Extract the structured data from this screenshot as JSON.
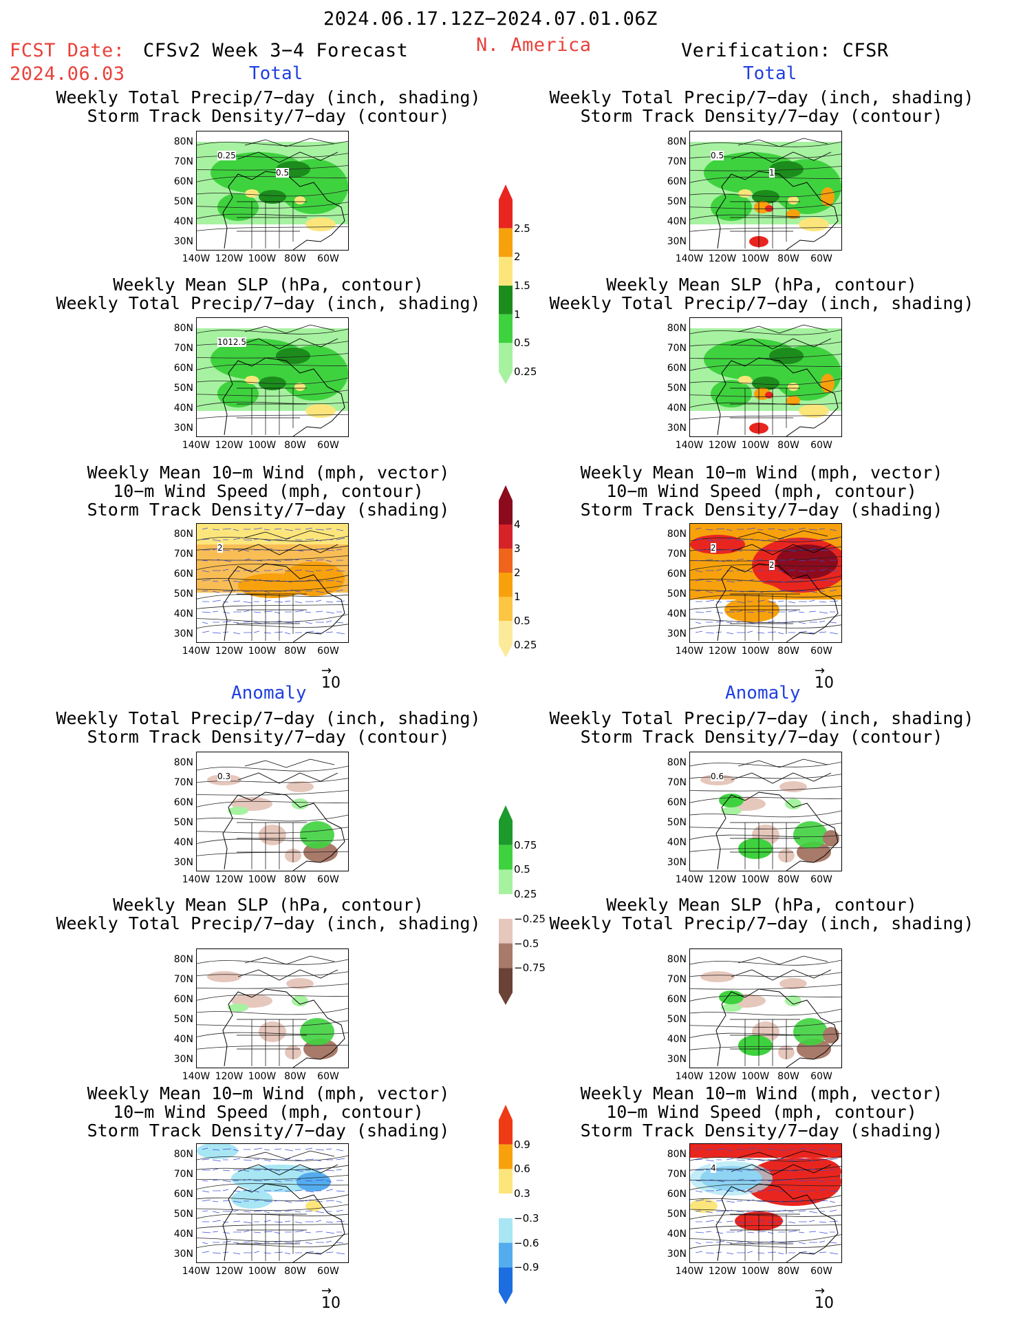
{
  "header": {
    "period": "2024.06.17.12Z−2024.07.01.06Z",
    "region": "N. America",
    "fcst_label": "FCST Date:",
    "fcst_date": "2024.06.03",
    "model": "CFSv2 Week 3−4 Forecast",
    "verification": "Verification: CFSR"
  },
  "sections": {
    "total": "Total",
    "anomaly": "Anomaly"
  },
  "titles": {
    "precip_storm": "Weekly Total Precip/7−day (inch, shading)\nStorm Track Density/7−day (contour)",
    "slp_precip": "Weekly Mean SLP (hPa, contour)\nWeekly Total Precip/7−day (inch, shading)",
    "wind_storm": "Weekly Mean 10−m Wind (mph, vector)\n10−m Wind Speed (mph, contour)\nStorm Track Density/7−day (shading)"
  },
  "axes": {
    "lat": [
      "80N",
      "70N",
      "60N",
      "50N",
      "40N",
      "30N"
    ],
    "lon": [
      "140W",
      "120W",
      "100W",
      "80W",
      "60W"
    ]
  },
  "vector_ref": "10",
  "contour_labels": {
    "p1_left": [
      "0.25",
      "0.5"
    ],
    "p1_right": [
      "0.5",
      "1"
    ],
    "p2_left": [
      "1012.5"
    ],
    "p3_left": [
      "2"
    ],
    "p3_right": [
      "2",
      "2"
    ],
    "p4_left": [
      "0.3"
    ],
    "p4_right": [
      "0.6"
    ],
    "p6_right": [
      "4"
    ]
  },
  "colorbars": {
    "precip_total": {
      "labels": [
        "2.5",
        "2",
        "1.5",
        "1",
        "0.5",
        "0.25"
      ],
      "colors": [
        "#e8261f",
        "#f7a10d",
        "#fce67c",
        "#1c8c1c",
        "#3fd23f",
        "#a6f2a0"
      ]
    },
    "storm_total": {
      "labels": [
        "4",
        "3",
        "2",
        "1",
        "0.5",
        "0.25"
      ],
      "colors": [
        "#8b0b1d",
        "#d6232a",
        "#f1641c",
        "#f8a10c",
        "#fcc542",
        "#fcea9b"
      ]
    },
    "precip_anom": {
      "labels": [
        "0.75",
        "0.5",
        "0.25",
        "−0.25",
        "−0.5",
        "−0.75"
      ],
      "colors": [
        "#1c9a2c",
        "#3fd23f",
        "#a6f2a0",
        "#ffffff",
        "#e6c7bc",
        "#a87a6a",
        "#6a4236"
      ]
    },
    "storm_anom": {
      "labels": [
        "0.9",
        "0.6",
        "0.3",
        "−0.3",
        "−0.6",
        "−0.9"
      ],
      "colors": [
        "#ef3a16",
        "#f8a10c",
        "#fce67c",
        "#ffffff",
        "#a8e6f4",
        "#54acee",
        "#1c6ee0"
      ]
    }
  },
  "fill_colors": {
    "green_light": "#a6f2a0",
    "green_mid": "#3fd23f",
    "green_dark": "#1c8c1c",
    "yellow": "#fce67c",
    "orange": "#f7a10d",
    "red": "#e8261f",
    "dark_red": "#8b0b1d",
    "brown_light": "#e6c7bc",
    "brown_mid": "#a87a6a",
    "cyan_light": "#a8e6f4",
    "blue_mid": "#54acee",
    "wind_blue": "#3a4bd8"
  }
}
